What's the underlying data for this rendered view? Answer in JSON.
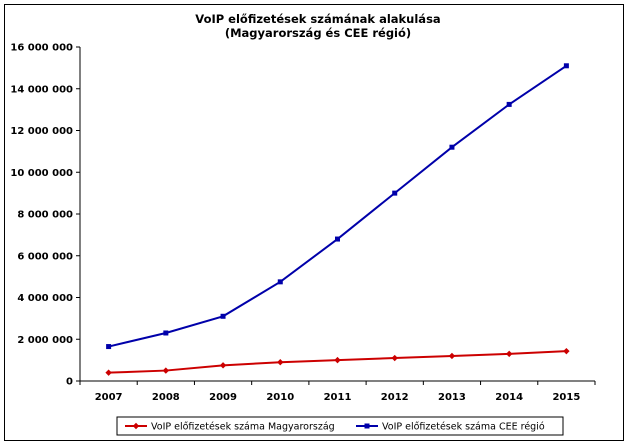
{
  "chart_data": {
    "type": "line",
    "title": "VoIP előfizetések számának alakulása",
    "subtitle": "(Magyarország és CEE régió)",
    "xlabel": "",
    "ylabel": "",
    "x": [
      "2007",
      "2008",
      "2009",
      "2010",
      "2011",
      "2012",
      "2013",
      "2014",
      "2015"
    ],
    "ylim": [
      0,
      16000000
    ],
    "yticks": [
      0,
      2000000,
      4000000,
      6000000,
      8000000,
      10000000,
      12000000,
      14000000,
      16000000
    ],
    "ytick_labels": [
      "0",
      "2 000 000",
      "4 000 000",
      "6 000 000",
      "8 000 000",
      "10 000 000",
      "12 000 000",
      "14 000 000",
      "16 000 000"
    ],
    "grid": false,
    "legend_position": "bottom",
    "series": [
      {
        "name": "VoIP előfizetések száma Magyarország",
        "color": "#cc0000",
        "marker": "diamond",
        "values": [
          400000,
          500000,
          750000,
          900000,
          1000000,
          1100000,
          1200000,
          1300000,
          1430000
        ]
      },
      {
        "name": "VoIP előfizetések száma CEE régió",
        "color": "#0000aa",
        "marker": "square",
        "values": [
          1650000,
          2300000,
          3100000,
          4750000,
          6800000,
          9000000,
          11200000,
          13250000,
          15100000
        ]
      }
    ]
  }
}
